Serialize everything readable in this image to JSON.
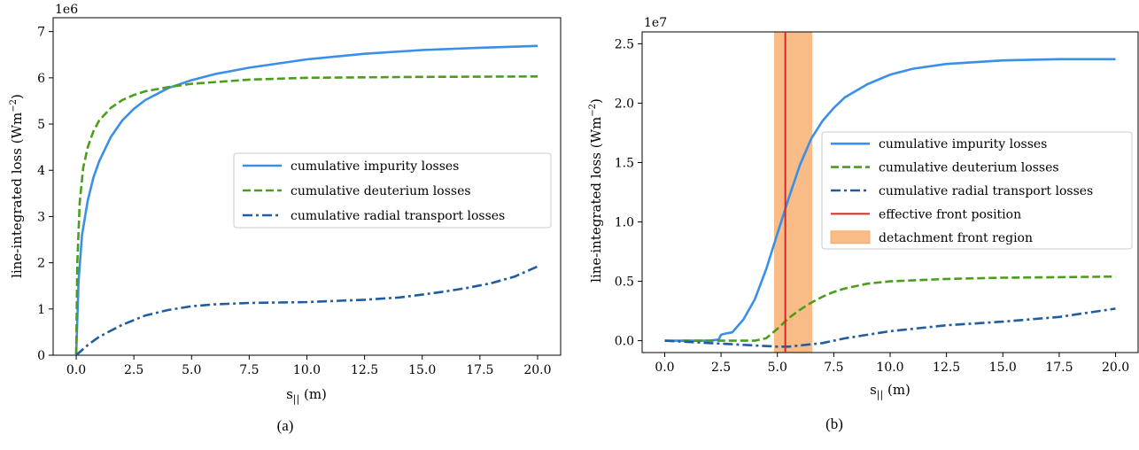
{
  "chart_data": [
    {
      "type": "line",
      "caption": "(a)",
      "xlabel": "s",
      "xlabel_sub": "||",
      "xlabel_unit": " (m)",
      "ylabel": "line-integrated loss (Wm",
      "ylabel_sup": "−2",
      "ylabel_close": ")",
      "offset_text": "1e6",
      "xlim": [
        -1.0,
        21.0
      ],
      "ylim": [
        0,
        7.3
      ],
      "xticks": [
        0.0,
        2.5,
        5.0,
        7.5,
        10.0,
        12.5,
        15.0,
        17.5,
        20.0
      ],
      "xtick_labels": [
        "0.0",
        "2.5",
        "5.0",
        "7.5",
        "10.0",
        "12.5",
        "15.0",
        "17.5",
        "20.0"
      ],
      "yticks": [
        0,
        1,
        2,
        3,
        4,
        5,
        6,
        7
      ],
      "ytick_labels": [
        "0",
        "1",
        "2",
        "3",
        "4",
        "5",
        "6",
        "7"
      ],
      "legend_position": "center-right",
      "series": [
        {
          "name": "cumulative impurity losses",
          "color": "#3a8fe8",
          "style": "solid",
          "x": [
            0,
            0.1,
            0.25,
            0.5,
            0.75,
            1.0,
            1.5,
            2.0,
            2.5,
            3.0,
            4.0,
            5.0,
            6.0,
            7.5,
            10.0,
            12.5,
            15.0,
            17.5,
            20.0
          ],
          "y": [
            0,
            1.6,
            2.6,
            3.35,
            3.85,
            4.2,
            4.72,
            5.08,
            5.33,
            5.52,
            5.78,
            5.95,
            6.08,
            6.22,
            6.4,
            6.52,
            6.6,
            6.65,
            6.69
          ]
        },
        {
          "name": "cumulative deuterium losses",
          "color": "#4a9e1c",
          "style": "dashed",
          "x": [
            0,
            0.05,
            0.15,
            0.3,
            0.5,
            0.75,
            1.0,
            1.5,
            2.0,
            2.5,
            3.0,
            4.0,
            5.0,
            7.5,
            10.0,
            15.0,
            20.0
          ],
          "y": [
            0,
            2.0,
            3.3,
            4.05,
            4.5,
            4.85,
            5.08,
            5.35,
            5.52,
            5.63,
            5.71,
            5.8,
            5.87,
            5.96,
            6.0,
            6.02,
            6.03
          ]
        },
        {
          "name": "cumulative radial transport losses",
          "color": "#1f5da0",
          "style": "dashdot",
          "x": [
            0,
            0.5,
            1.0,
            2.0,
            3.0,
            4.0,
            5.0,
            6.0,
            7.5,
            10.0,
            12.5,
            14.0,
            15.0,
            16.0,
            17.0,
            18.0,
            19.0,
            20.0
          ],
          "y": [
            0,
            0.22,
            0.4,
            0.66,
            0.86,
            0.98,
            1.06,
            1.1,
            1.13,
            1.15,
            1.2,
            1.25,
            1.31,
            1.38,
            1.46,
            1.56,
            1.7,
            1.92
          ]
        }
      ]
    },
    {
      "type": "line",
      "caption": "(b)",
      "xlabel": "s",
      "xlabel_sub": "||",
      "xlabel_unit": " (m)",
      "ylabel": "line-integrated loss (Wm",
      "ylabel_sup": "−2",
      "ylabel_close": ")",
      "offset_text": "1e7",
      "xlim": [
        -1.0,
        21.0
      ],
      "ylim": [
        -0.1,
        2.6
      ],
      "xticks": [
        0.0,
        2.5,
        5.0,
        7.5,
        10.0,
        12.5,
        15.0,
        17.5,
        20.0
      ],
      "xtick_labels": [
        "0.0",
        "2.5",
        "5.0",
        "7.5",
        "10.0",
        "12.5",
        "15.0",
        "17.5",
        "20.0"
      ],
      "yticks": [
        0.0,
        0.5,
        1.0,
        1.5,
        2.0,
        2.5
      ],
      "ytick_labels": [
        "0.0",
        "0.5",
        "1.0",
        "1.5",
        "2.0",
        "2.5"
      ],
      "legend_position": "center-right",
      "series": [
        {
          "name": "cumulative impurity losses",
          "color": "#3a8fe8",
          "style": "solid",
          "x": [
            0,
            1.0,
            2.0,
            2.4,
            2.5,
            2.7,
            3.0,
            3.5,
            4.0,
            4.5,
            5.0,
            5.5,
            6.0,
            6.5,
            7.0,
            7.5,
            8.0,
            9.0,
            10.0,
            11.0,
            12.5,
            15.0,
            17.5,
            20.0
          ],
          "y": [
            0,
            0,
            0,
            0.01,
            0.05,
            0.06,
            0.07,
            0.18,
            0.35,
            0.6,
            0.9,
            1.2,
            1.48,
            1.7,
            1.85,
            1.96,
            2.05,
            2.16,
            2.24,
            2.29,
            2.33,
            2.36,
            2.37,
            2.37
          ]
        },
        {
          "name": "cumulative deuterium losses",
          "color": "#4a9e1c",
          "style": "dashed",
          "x": [
            0.8,
            2.0,
            3.0,
            4.0,
            4.5,
            5.0,
            5.5,
            6.0,
            6.5,
            7.0,
            7.5,
            8.0,
            9.0,
            10.0,
            12.5,
            15.0,
            17.5,
            20.0
          ],
          "y": [
            0,
            0,
            0,
            0,
            0.02,
            0.1,
            0.19,
            0.26,
            0.32,
            0.37,
            0.41,
            0.44,
            0.48,
            0.5,
            0.52,
            0.53,
            0.535,
            0.54
          ]
        },
        {
          "name": "cumulative radial transport losses",
          "color": "#1f5da0",
          "style": "dashdot",
          "x": [
            0,
            1.0,
            2.0,
            3.0,
            4.0,
            5.0,
            5.5,
            6.0,
            7.0,
            8.0,
            9.0,
            10.0,
            12.5,
            15.0,
            17.5,
            20.0
          ],
          "y": [
            0,
            -0.01,
            -0.02,
            -0.03,
            -0.04,
            -0.05,
            -0.05,
            -0.04,
            -0.02,
            0.02,
            0.05,
            0.08,
            0.13,
            0.16,
            0.2,
            0.27
          ]
        },
        {
          "name": "effective front position",
          "color": "#d62728",
          "style": "vline",
          "x": 5.35
        }
      ],
      "span": {
        "name": "detachment front region",
        "color": "#f9bc86",
        "x0": 4.85,
        "x1": 6.55
      }
    }
  ]
}
